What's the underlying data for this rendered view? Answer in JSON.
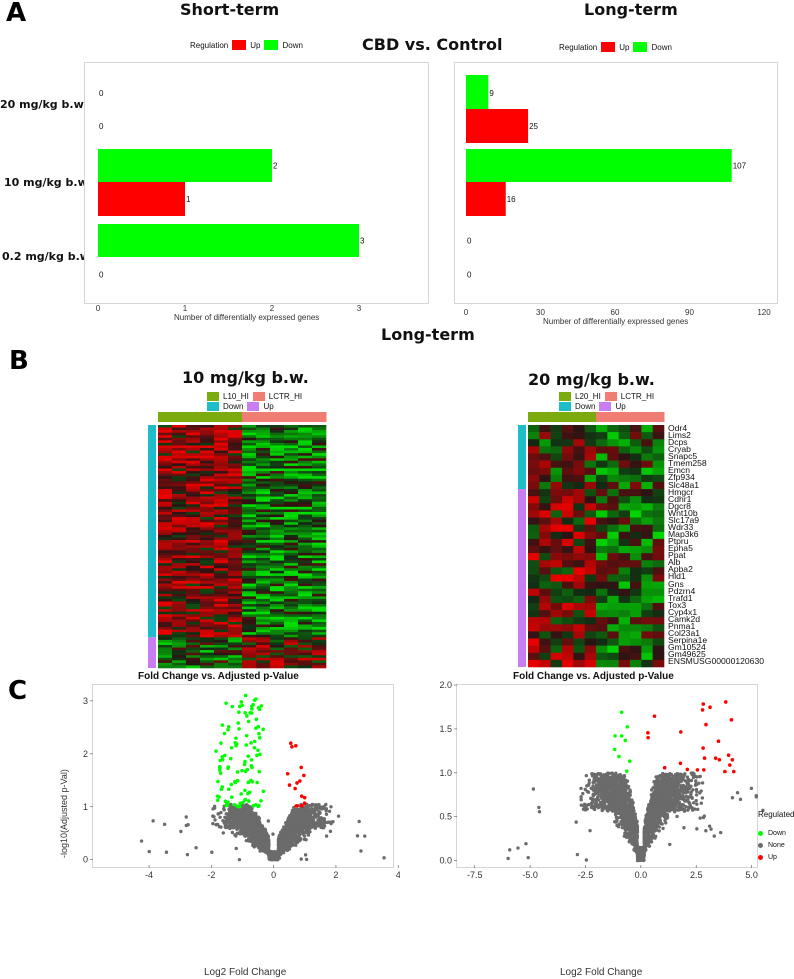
{
  "panels": {
    "a": "A",
    "b": "B",
    "c": "C"
  },
  "panel_a": {
    "center_title": "CBD vs. Control",
    "left_title": "Short-term",
    "right_title": "Long-term",
    "legend_title": "Regulation",
    "legend_up": "Up",
    "legend_down": "Down",
    "colors": {
      "up": "#ff0000",
      "down": "#00ff00"
    }
  },
  "panel_b": {
    "section_title": "Long-term",
    "left_title": "10 mg/kg b.w.",
    "right_title": "20 mg/kg b.w.",
    "left_legend": {
      "group1": "L10_HI",
      "group2": "LCTR_HI",
      "down": "Down",
      "up": "Up"
    },
    "right_legend": {
      "group1": "L20_HI",
      "group2": "LCTR_HI",
      "down": "Down",
      "up": "Up"
    },
    "colors": {
      "treat": "#7cab0f",
      "ctrl": "#f07d73",
      "down": "#1ebec8",
      "up": "#c97df2"
    },
    "genes": [
      "Odr4",
      "Lims2",
      "Dcps",
      "Cryab",
      "Snapc5",
      "Tmem258",
      "Emcn",
      "Zfp934",
      "Slc48a1",
      "Hmgcr",
      "Cdhr1",
      "Dgcr8",
      "Wnt10b",
      "Slc17a9",
      "Wdr33",
      "Map3k6",
      "Ptpru",
      "Epha5",
      "Ppat",
      "Alb",
      "Apba2",
      "Hld1",
      "Gns",
      "Pdzrn4",
      "Trafd1",
      "Tox3",
      "Cyp4x1",
      "Camk2d",
      "Pnma1",
      "Col23a1",
      "Serpina1e",
      "Gm10524",
      "Gm49625",
      "ENSMUSG00000120630"
    ]
  },
  "panel_c": {
    "legend_title": "Regulated",
    "legend_down": "Down",
    "legend_none": "None",
    "legend_up": "Up",
    "colors": {
      "down": "#00ff00",
      "none": "#6b6b6b",
      "up": "#ff0000"
    }
  },
  "chart_data": [
    {
      "type": "bar",
      "orientation": "horizontal",
      "categories": [
        "20 mg/kg b.w.",
        "10 mg/kg b.w.",
        "0.2 mg/kg b.w."
      ],
      "series": [
        {
          "name": "Down",
          "values": [
            0,
            2,
            3
          ]
        },
        {
          "name": "Up",
          "values": [
            0,
            1,
            0
          ]
        }
      ],
      "title": "Short-term",
      "xlabel": "Number of differentially expressed genes",
      "ylabel": "",
      "xlim": [
        0,
        3
      ],
      "xticks": [
        "0",
        "1",
        "2",
        "3"
      ],
      "legend": "top-left",
      "grid": false
    },
    {
      "type": "bar",
      "orientation": "horizontal",
      "categories": [
        "20 mg/kg b.w.",
        "10 mg/kg b.w.",
        "0.2 mg/kg b.w."
      ],
      "series": [
        {
          "name": "Down",
          "values": [
            9,
            107,
            0
          ]
        },
        {
          "name": "Up",
          "values": [
            25,
            16,
            0
          ]
        }
      ],
      "title": "Long-term",
      "xlabel": "Number of differentially expressed genes",
      "ylabel": "",
      "xlim": [
        0,
        120
      ],
      "xticks": [
        "0",
        "30",
        "60",
        "90",
        "120"
      ],
      "legend": "top-left",
      "grid": false
    },
    {
      "type": "heatmap",
      "title": "10 mg/kg b.w.",
      "columns": [
        "L10_HI",
        "L10_HI",
        "L10_HI",
        "L10_HI",
        "L10_HI",
        "L10_HI",
        "LCTR_HI",
        "LCTR_HI",
        "LCTR_HI",
        "LCTR_HI",
        "LCTR_HI",
        "LCTR_HI"
      ],
      "row_groups": [
        {
          "name": "Down",
          "count": 107
        },
        {
          "name": "Up",
          "count": 16
        }
      ],
      "color_scale": [
        "#00c000",
        "#000000",
        "#e00000"
      ]
    },
    {
      "type": "heatmap",
      "title": "20 mg/kg b.w.",
      "columns": [
        "L20_HI",
        "L20_HI",
        "L20_HI",
        "L20_HI",
        "L20_HI",
        "L20_HI",
        "LCTR_HI",
        "LCTR_HI",
        "LCTR_HI",
        "LCTR_HI",
        "LCTR_HI",
        "LCTR_HI"
      ],
      "row_groups": [
        {
          "name": "Down",
          "count": 9
        },
        {
          "name": "Up",
          "count": 25
        }
      ],
      "color_scale": [
        "#00c000",
        "#000000",
        "#e00000"
      ]
    },
    {
      "type": "scatter",
      "title": "Fold Change vs. Adjusted p-Value",
      "xlabel": "Log2 Fold Change",
      "ylabel": "-log10(Adjusted p-Val)",
      "xlim": [
        -5.8,
        3.8
      ],
      "ylim": [
        -0.1,
        3.3
      ],
      "xticks": [
        "-4",
        "-2",
        "0",
        "2",
        "4"
      ],
      "yticks": [
        "0",
        "1",
        "2",
        "3"
      ],
      "series": [
        {
          "name": "Down",
          "count": 107,
          "x_range": [
            -1.8,
            -0.3
          ],
          "y_range": [
            1,
            3.1
          ],
          "points": [
            [
              -0.9,
              3.1
            ],
            [
              -0.7,
              2.85
            ],
            [
              -1.85,
              2.05
            ],
            [
              -1.8,
              1.2
            ]
          ]
        },
        {
          "name": "Up",
          "count": 16,
          "x_range": [
            0.4,
            1.0
          ],
          "y_range": [
            1.0,
            2.2
          ],
          "points": [
            [
              0.55,
              2.2
            ],
            [
              0.75,
              1.45
            ],
            [
              0.9,
              1.2
            ]
          ]
        }
      ]
    },
    {
      "type": "scatter",
      "title": "Fold Change vs. Adjusted p-Value",
      "xlabel": "Log2 Fold Change",
      "ylabel": "",
      "xlim": [
        -8.3,
        5.2
      ],
      "ylim": [
        -0.05,
        2.0
      ],
      "xticks": [
        "-7.5",
        "-5.0",
        "-2.5",
        "0.0",
        "2.5",
        "5.0"
      ],
      "yticks": [
        "0.0",
        "0.5",
        "1.0",
        "1.5",
        "2.0"
      ],
      "legend": "right",
      "series": [
        {
          "name": "Down",
          "count": 9,
          "x_range": [
            -1.2,
            -0.4
          ],
          "y_range": [
            1.0,
            1.7
          ]
        },
        {
          "name": "Up",
          "count": 25,
          "x_range": [
            0.3,
            4.3
          ],
          "y_range": [
            1.0,
            1.9
          ]
        }
      ]
    }
  ]
}
